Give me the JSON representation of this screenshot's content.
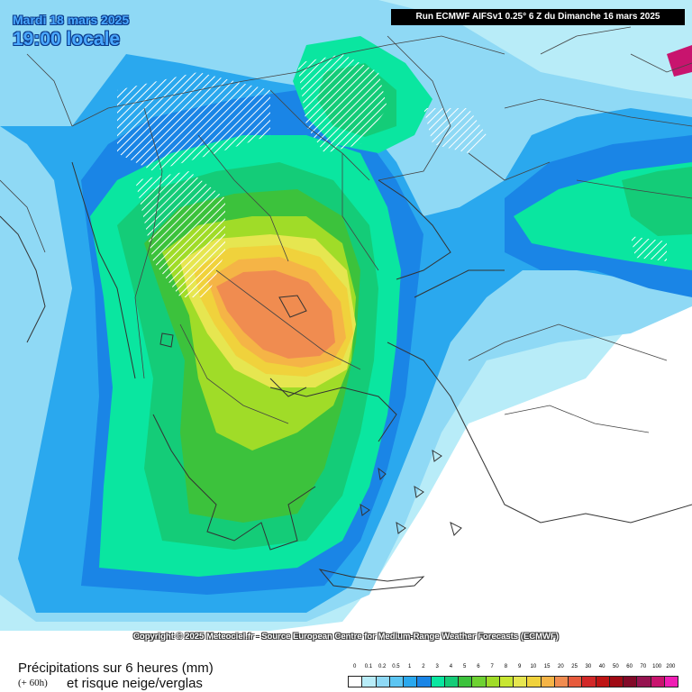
{
  "header": {
    "date": "Mardi 18 mars 2025",
    "time": "19:00 locale",
    "run": "Run ECMWF AIFSv1 0.25° 6 Z du Dimanche 16 mars 2025"
  },
  "copyright": "Copyright © 2025 Meteociel.fr - Source European Centre for Medium-Range Weather Forecasts (ECMWF)",
  "footer": {
    "title": "Précipitations sur 6 heures (mm)",
    "hour": "(+ 60h)",
    "subtitle": "et risque neige/verglas"
  },
  "legend": {
    "labels": [
      "0",
      "0.1",
      "0.2",
      "0.5",
      "1",
      "2",
      "3",
      "4",
      "5",
      "6",
      "7",
      "8",
      "9",
      "10",
      "15",
      "20",
      "25",
      "30",
      "40",
      "50",
      "60",
      "70",
      "100",
      "200"
    ],
    "colors": [
      "#ffffff",
      "#b8ecf8",
      "#8fd9f5",
      "#5cc5f2",
      "#2aa8ee",
      "#1a85e6",
      "#0ae6a0",
      "#14cc78",
      "#3cc23c",
      "#6ed232",
      "#a0dc28",
      "#c8e632",
      "#e6e650",
      "#f0d23c",
      "#f5b446",
      "#f08c50",
      "#e65a3c",
      "#d22828",
      "#be1414",
      "#a00a14",
      "#820a28",
      "#961450",
      "#c8146e",
      "#f01eb4"
    ]
  },
  "map_palette": {
    "sea": "#ffffff",
    "precip_0_1": "#b8ecf8",
    "precip_0_2": "#8fd9f5",
    "precip_1": "#2aa8ee",
    "precip_2": "#1a85e6",
    "precip_3": "#0ae6a0",
    "precip_4": "#14cc78",
    "precip_5": "#3cc23c",
    "precip_7": "#a0dc28",
    "precip_9": "#e6e650",
    "precip_10": "#f0d23c",
    "precip_15": "#f5b446",
    "precip_20": "#f08c50",
    "borders": "#444444",
    "snow_hatch": "#ffffff"
  }
}
